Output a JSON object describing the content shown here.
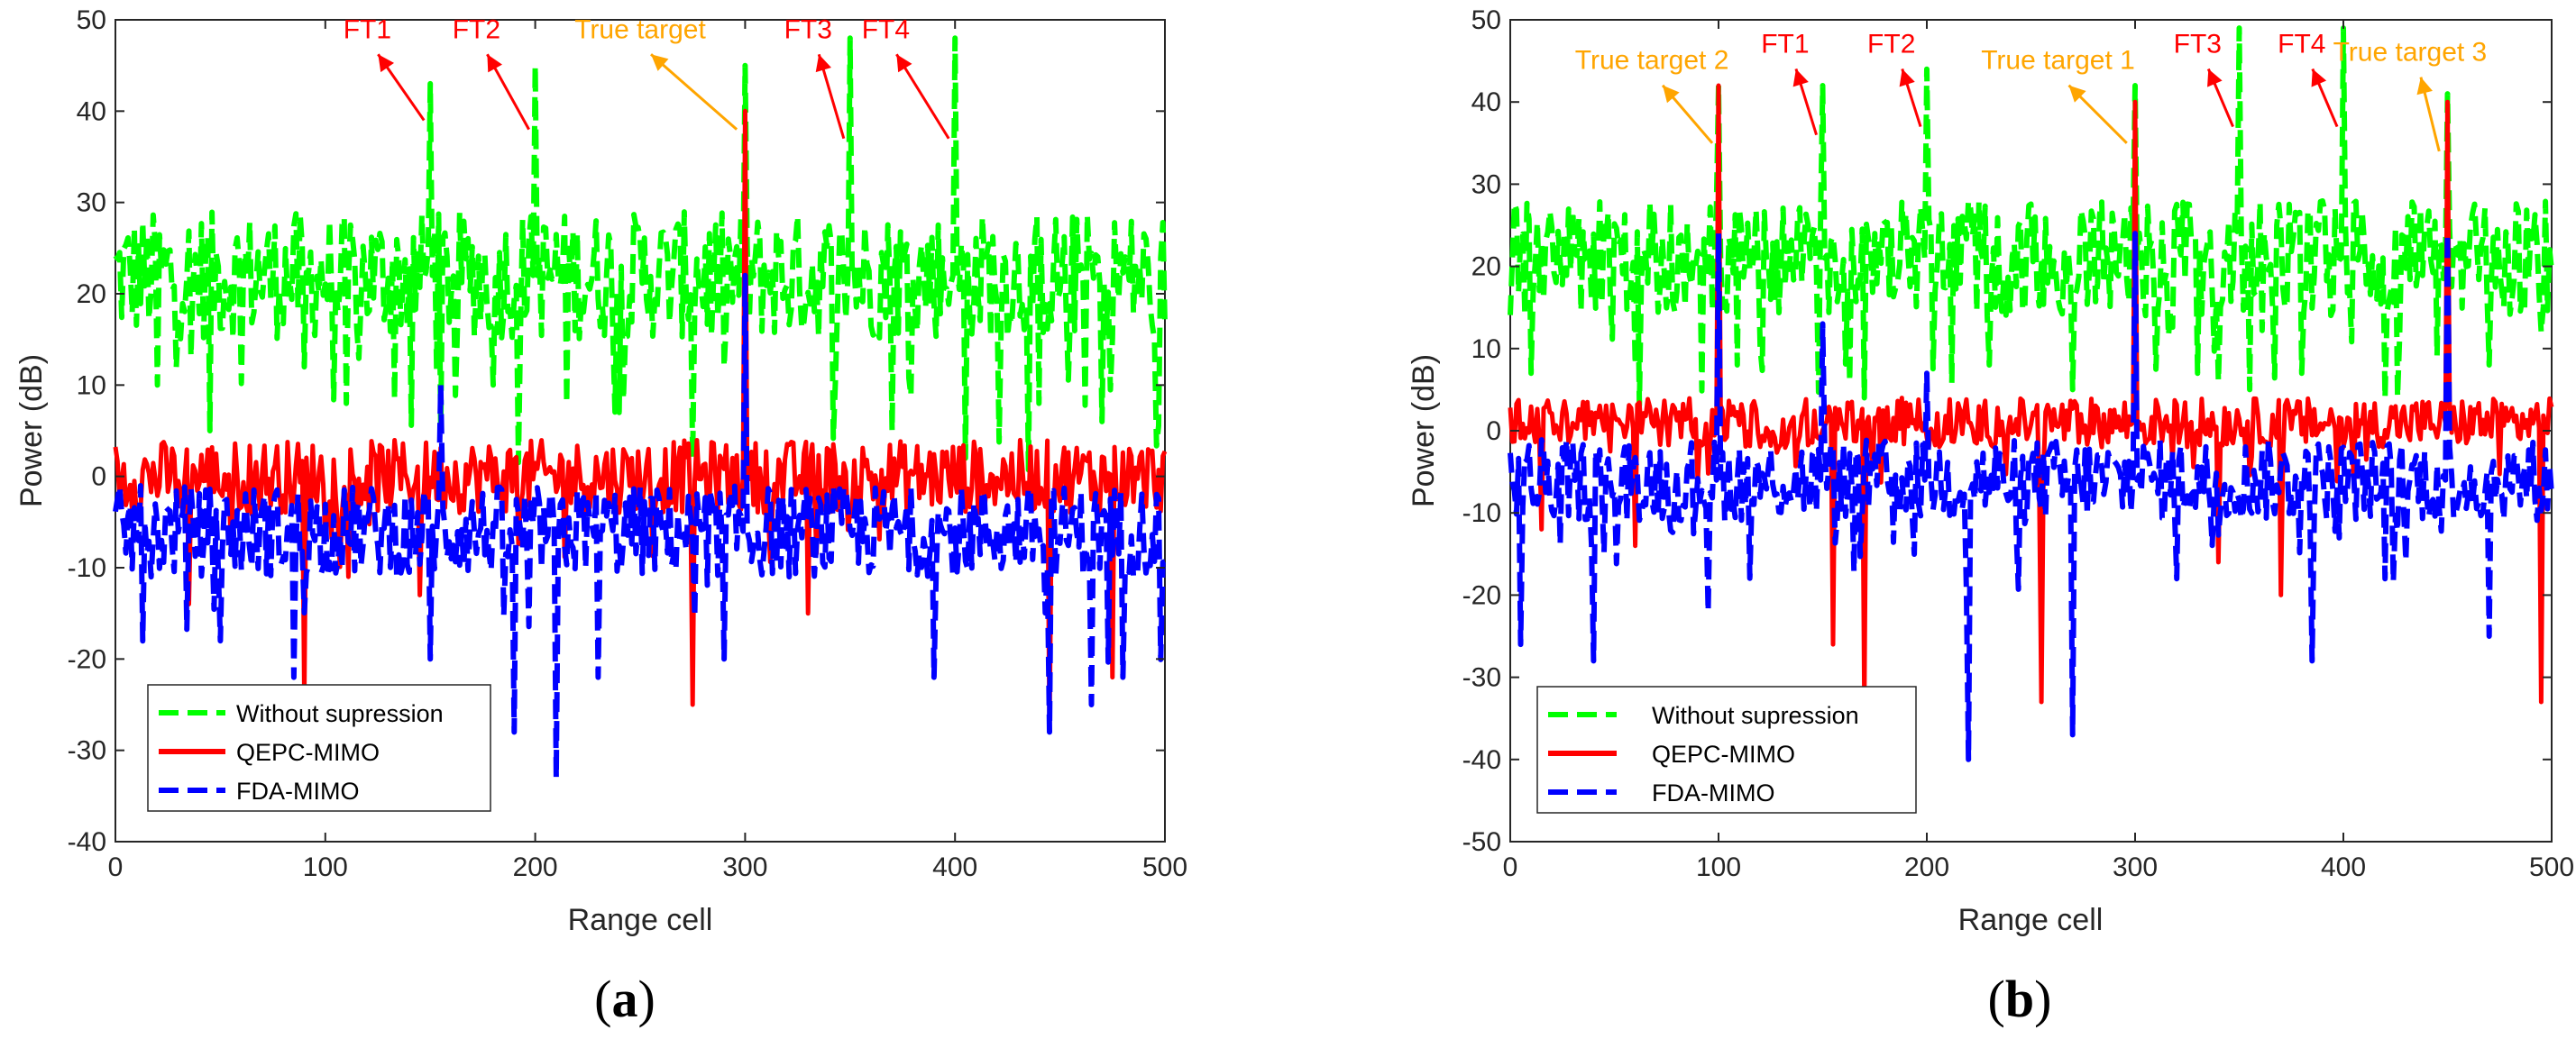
{
  "colors": {
    "without": "#00ff00",
    "qepc": "#ff0000",
    "fda": "#0000ff",
    "ft_annotation": "#ff0000",
    "target_annotation": "#ffa500"
  },
  "chart_data": [
    {
      "type": "line",
      "panel_label": "a",
      "xlabel": "Range cell",
      "ylabel": "Power (dB)",
      "xlim": [
        0,
        500
      ],
      "ylim": [
        -40,
        50
      ],
      "xticks": [
        "0",
        "100",
        "200",
        "300",
        "400",
        "500"
      ],
      "yticks": [
        "-40",
        "-30",
        "-20",
        "-10",
        "0",
        "10",
        "20",
        "30",
        "40",
        "50"
      ],
      "legend": [
        "Without supression",
        "QEPC-MIMO",
        "FDA-MIMO"
      ],
      "series": [
        {
          "name": "Without supression",
          "baseline": 22,
          "spread": 7,
          "dips": [
            [
              20,
              10
            ],
            [
              45,
              5
            ],
            [
              90,
              12
            ],
            [
              110,
              8
            ],
            [
              155,
              5
            ],
            [
              180,
              10
            ],
            [
              215,
              8
            ],
            [
              240,
              7
            ],
            [
              275,
              2
            ],
            [
              290,
              12
            ],
            [
              350,
              3
            ],
            [
              370,
              5
            ],
            [
              405,
              2
            ],
            [
              440,
              8
            ],
            [
              470,
              6
            ],
            [
              495,
              15
            ]
          ],
          "peaks": [
            [
              150,
              43
            ],
            [
              200,
              45
            ],
            [
              300,
              45
            ],
            [
              350,
              48
            ],
            [
              400,
              48
            ]
          ]
        },
        {
          "name": "QEPC-MIMO",
          "baseline": 0,
          "spread": 4,
          "dips": [
            [
              35,
              -14
            ],
            [
              90,
              -24
            ],
            [
              145,
              -13
            ],
            [
              275,
              -25
            ],
            [
              330,
              -15
            ],
            [
              445,
              -28
            ],
            [
              475,
              -22
            ]
          ],
          "peaks": [
            [
              300,
              40
            ]
          ]
        },
        {
          "name": "FDA-MIMO",
          "baseline": -6,
          "spread": 5,
          "dips": [
            [
              50,
              -18
            ],
            [
              85,
              -22
            ],
            [
              150,
              -20
            ],
            [
              190,
              -28
            ],
            [
              210,
              -33
            ],
            [
              230,
              -22
            ],
            [
              290,
              -20
            ],
            [
              390,
              -22
            ],
            [
              445,
              -28
            ],
            [
              465,
              -25
            ],
            [
              480,
              -22
            ]
          ],
          "peaks": [
            [
              155,
              10
            ],
            [
              300,
              22
            ]
          ]
        }
      ],
      "annotations": [
        {
          "text": "FT1",
          "color": "ft",
          "from": [
            147,
            39
          ],
          "to": [
            120,
            48
          ]
        },
        {
          "text": "FT2",
          "color": "ft",
          "from": [
            197,
            38
          ],
          "to": [
            172,
            48
          ]
        },
        {
          "text": "True target",
          "color": "target",
          "from": [
            296,
            38
          ],
          "to": [
            250,
            48
          ]
        },
        {
          "text": "FT3",
          "color": "ft",
          "from": [
            347,
            37
          ],
          "to": [
            330,
            48
          ]
        },
        {
          "text": "FT4",
          "color": "ft",
          "from": [
            397,
            37
          ],
          "to": [
            367,
            48
          ]
        }
      ]
    },
    {
      "type": "line",
      "panel_label": "b",
      "xlabel": "Range cell",
      "ylabel": "Power (dB)",
      "xlim": [
        0,
        500
      ],
      "ylim": [
        -50,
        50
      ],
      "xticks": [
        "0",
        "100",
        "200",
        "300",
        "400",
        "500"
      ],
      "yticks": [
        "-50",
        "-40",
        "-30",
        "-20",
        "-10",
        "0",
        "10",
        "20",
        "30",
        "40",
        "50"
      ],
      "legend": [
        "Without supression",
        "QEPC-MIMO",
        "FDA-MIMO"
      ],
      "series": [
        {
          "name": "Without supression",
          "baseline": 21,
          "spread": 7,
          "dips": [
            [
              10,
              7
            ],
            [
              60,
              8
            ],
            [
              120,
              10
            ],
            [
              170,
              4
            ],
            [
              230,
              8
            ],
            [
              270,
              5
            ],
            [
              330,
              7
            ],
            [
              355,
              5
            ],
            [
              380,
              7
            ],
            [
              420,
              4
            ],
            [
              470,
              8
            ],
            [
              495,
              12
            ]
          ],
          "peaks": [
            [
              100,
              42
            ],
            [
              150,
              42
            ],
            [
              200,
              44
            ],
            [
              300,
              42
            ],
            [
              350,
              49
            ],
            [
              400,
              49
            ],
            [
              450,
              41
            ]
          ]
        },
        {
          "name": "QEPC-MIMO",
          "baseline": 1,
          "spread": 3,
          "dips": [
            [
              15,
              -12
            ],
            [
              60,
              -14
            ],
            [
              155,
              -26
            ],
            [
              170,
              -33
            ],
            [
              255,
              -33
            ],
            [
              340,
              -16
            ],
            [
              370,
              -20
            ],
            [
              495,
              -33
            ]
          ],
          "peaks": [
            [
              100,
              42
            ],
            [
              300,
              40
            ],
            [
              450,
              40
            ]
          ]
        },
        {
          "name": "FDA-MIMO",
          "baseline": -6,
          "spread": 5,
          "dips": [
            [
              5,
              -26
            ],
            [
              40,
              -28
            ],
            [
              95,
              -22
            ],
            [
              200,
              -25
            ],
            [
              220,
              -40
            ],
            [
              270,
              -37
            ],
            [
              320,
              -18
            ],
            [
              385,
              -28
            ],
            [
              420,
              -18
            ],
            [
              470,
              -25
            ]
          ],
          "peaks": [
            [
              100,
              24
            ],
            [
              150,
              13
            ],
            [
              200,
              7
            ],
            [
              300,
              24
            ],
            [
              450,
              24
            ]
          ]
        }
      ],
      "annotations": [
        {
          "text": "True target 2",
          "color": "target",
          "from": [
            97,
            35
          ],
          "to": [
            68,
            44
          ]
        },
        {
          "text": "FT1",
          "color": "ft",
          "from": [
            147,
            36
          ],
          "to": [
            132,
            46
          ]
        },
        {
          "text": "FT2",
          "color": "ft",
          "from": [
            197,
            37
          ],
          "to": [
            183,
            46
          ]
        },
        {
          "text": "True target 1",
          "color": "target",
          "from": [
            296,
            35
          ],
          "to": [
            263,
            44
          ]
        },
        {
          "text": "FT3",
          "color": "ft",
          "from": [
            347,
            37
          ],
          "to": [
            330,
            46
          ]
        },
        {
          "text": "FT4",
          "color": "ft",
          "from": [
            397,
            37
          ],
          "to": [
            380,
            46
          ]
        },
        {
          "text": "True target 3",
          "color": "target",
          "from": [
            446,
            34
          ],
          "to": [
            432,
            45
          ]
        }
      ]
    }
  ]
}
